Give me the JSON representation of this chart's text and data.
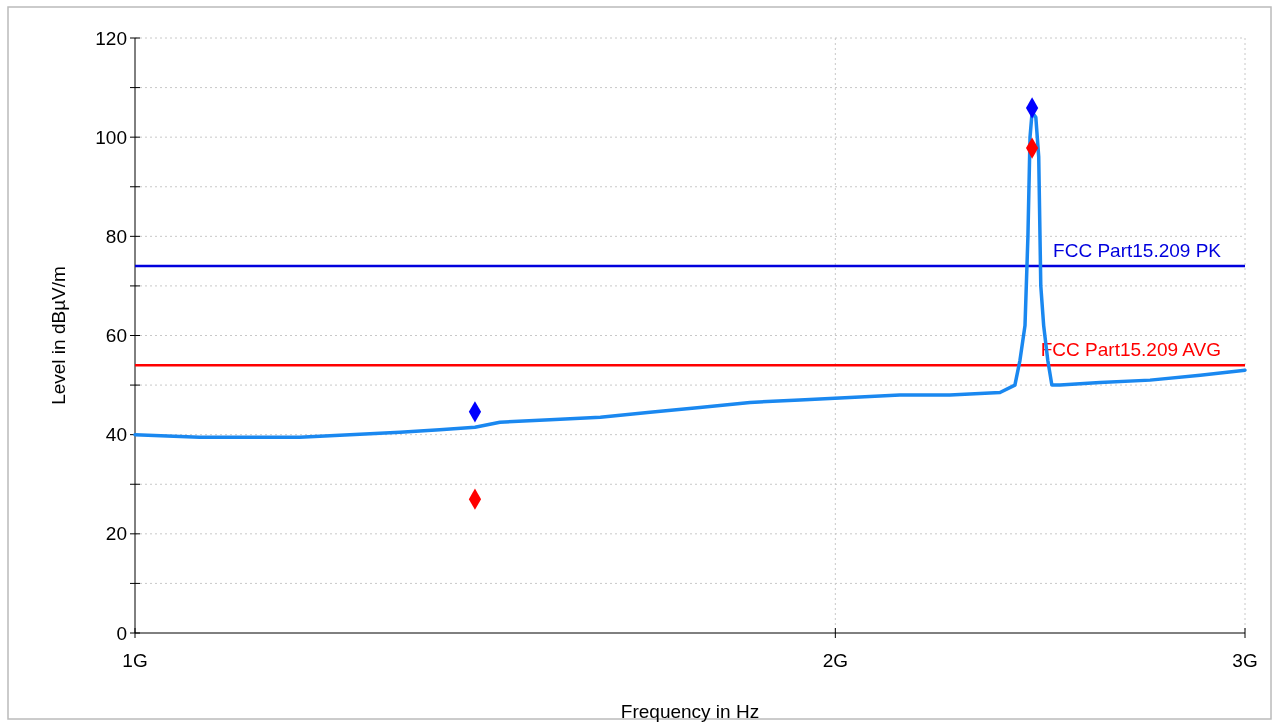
{
  "chart_data": {
    "type": "line",
    "xlabel": "Frequency in Hz",
    "ylabel": "Level in dBµV/m",
    "log": "x",
    "grid": true,
    "xlim": [
      1,
      3
    ],
    "xticks": [
      {
        "value": 1,
        "label": "1G"
      },
      {
        "value": 2,
        "label": "2G"
      },
      {
        "value": 3,
        "label": "3G"
      }
    ],
    "ylim": [
      0,
      120
    ],
    "yticks": [
      0,
      {
        "value": 10,
        "label": null
      },
      20,
      {
        "value": 30,
        "label": null
      },
      40,
      {
        "value": 50,
        "label": null
      },
      60,
      {
        "value": 70,
        "label": null
      },
      80,
      {
        "value": 90,
        "label": null
      },
      100,
      {
        "value": 110,
        "label": null
      },
      120
    ],
    "series": [
      {
        "type": "line",
        "color": "#1a88f0",
        "marker": "none",
        "line_style": "solid",
        "x": [
          1,
          1.066,
          1.121,
          1.177,
          1.237,
          1.3,
          1.352,
          1.4,
          1.435,
          1.508,
          1.585,
          1.665,
          1.749,
          1.838,
          1.931,
          2.029,
          2.132,
          2.24,
          2.354,
          2.389,
          2.401,
          2.413,
          2.42,
          2.425,
          2.43,
          2.439,
          2.446,
          2.451,
          2.458,
          2.468,
          2.478,
          2.498,
          2.599,
          2.731,
          2.87,
          3
        ],
        "values": [
          40,
          39.5,
          39.5,
          39.5,
          40,
          40.5,
          41,
          41.5,
          42.5,
          43,
          43.5,
          44.5,
          45.5,
          46.5,
          47,
          47.5,
          48,
          48,
          48.5,
          50,
          55,
          62,
          80,
          100,
          105,
          104,
          96,
          70,
          62,
          55,
          50,
          50,
          50.5,
          51,
          52,
          53
        ]
      },
      {
        "type": "scatter",
        "color": "#0000ff",
        "marker": "diamond",
        "x": [
          1.4,
          2.43
        ],
        "values": [
          44.6,
          105.9
        ]
      },
      {
        "type": "scatter",
        "color": "#ff0000",
        "marker": "diamond",
        "x": [
          1.4,
          2.43
        ],
        "values": [
          27,
          97.8
        ]
      }
    ],
    "ref_lines": [
      {
        "axis": "y",
        "value": 74,
        "label": "FCC Part15.209 PK",
        "color": "#0000dd",
        "line_style": "solid"
      },
      {
        "axis": "y",
        "value": 54,
        "label": "FCC Part15.209 AVG",
        "color": "#ff0000",
        "line_style": "solid"
      }
    ]
  }
}
